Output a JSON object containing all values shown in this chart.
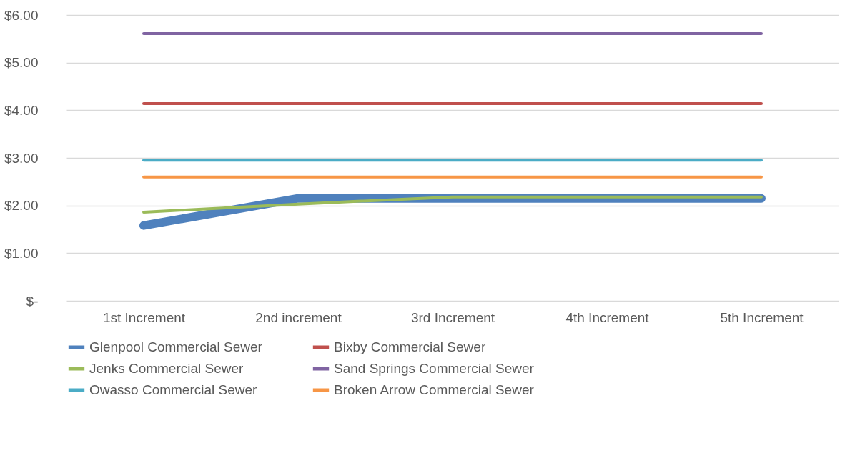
{
  "chart_data": {
    "type": "line",
    "categories": [
      "1st Increment",
      "2nd increment",
      "3rd Increment",
      "4th  Increment",
      "5th Increment"
    ],
    "series": [
      {
        "name": "Glenpool Commercial Sewer",
        "color": "#4f81bd",
        "values": [
          1.58,
          2.15,
          2.15,
          2.15,
          2.15
        ]
      },
      {
        "name": "Bixby Commercial Sewer",
        "color": "#c0504d",
        "values": [
          4.14,
          4.14,
          4.14,
          4.14,
          4.14
        ]
      },
      {
        "name": "Jenks Commercial Sewer",
        "color": "#9bbb59",
        "values": [
          1.86,
          2.03,
          2.18,
          2.18,
          2.18
        ]
      },
      {
        "name": "Sand Springs Commercial Sewer",
        "color": "#8064a2",
        "values": [
          5.61,
          5.61,
          5.61,
          5.61,
          5.61
        ]
      },
      {
        "name": "Owasso Commercial Sewer",
        "color": "#4bacc6",
        "values": [
          2.95,
          2.95,
          2.95,
          2.95,
          2.95
        ]
      },
      {
        "name": "Broken Arrow Commercial Sewer",
        "color": "#f79646",
        "values": [
          2.6,
          2.6,
          2.6,
          2.6,
          2.6
        ]
      }
    ],
    "ylim": [
      0,
      6
    ],
    "yticks": [
      {
        "value": 0,
        "label": "$-"
      },
      {
        "value": 1,
        "label": "$1.00"
      },
      {
        "value": 2,
        "label": "$2.00"
      },
      {
        "value": 3,
        "label": "$3.00"
      },
      {
        "value": 4,
        "label": "$4.00"
      },
      {
        "value": 5,
        "label": "$5.00"
      },
      {
        "value": 6,
        "label": "$6.00"
      }
    ],
    "grid": "y",
    "legend": "bottom",
    "marker": "none",
    "line_style": "solid"
  }
}
